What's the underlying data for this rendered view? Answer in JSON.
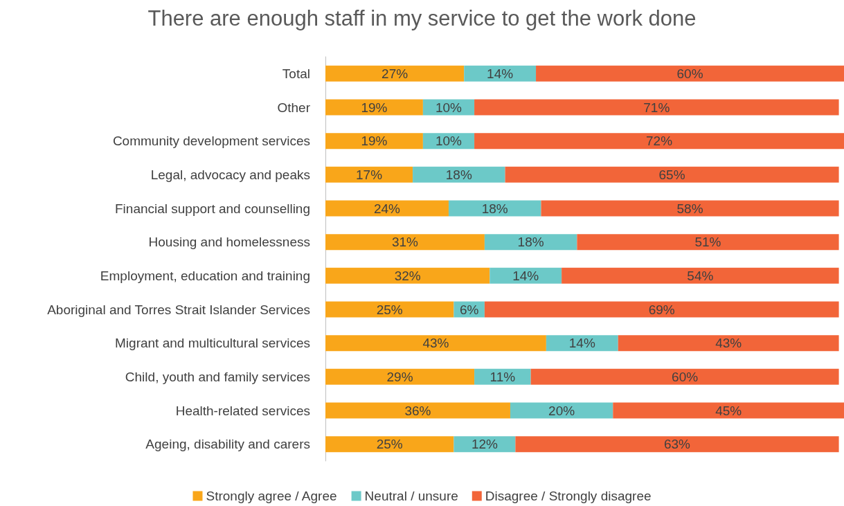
{
  "chart_data": {
    "type": "bar",
    "orientation": "horizontal",
    "stacked": true,
    "legend": "bottom",
    "title": "There are enough staff in my service to get the work done",
    "categories": [
      "Total",
      "Other",
      "Community development services",
      "Legal, advocacy and peaks",
      "Financial support and counselling",
      "Housing and homelessness",
      "Employment, education and training",
      "Aboriginal and Torres Strait Islander Services",
      "Migrant and multicultural services",
      "Child, youth and family services",
      "Health-related services",
      "Ageing, disability and carers"
    ],
    "series": [
      {
        "name": "Strongly agree / Agree",
        "color": "#f9a61a",
        "values": [
          27,
          19,
          19,
          17,
          24,
          31,
          32,
          25,
          43,
          29,
          36,
          25
        ],
        "value_labels": [
          "27%",
          "19%",
          "19%",
          "17%",
          "24%",
          "31%",
          "32%",
          "25%",
          "43%",
          "29%",
          "36%",
          "25%"
        ]
      },
      {
        "name": "Neutral / unsure",
        "color": "#6cc9c8",
        "values": [
          14,
          10,
          10,
          18,
          18,
          18,
          14,
          6,
          14,
          11,
          20,
          12
        ],
        "value_labels": [
          "14%",
          "10%",
          "10%",
          "18%",
          "18%",
          "18%",
          "14%",
          "6%",
          "14%",
          "11%",
          "20%",
          "12%"
        ]
      },
      {
        "name": "Disagree / Strongly disagree",
        "color": "#f26539",
        "values": [
          60,
          71,
          72,
          65,
          58,
          51,
          54,
          69,
          43,
          60,
          45,
          63
        ],
        "value_labels": [
          "60%",
          "71%",
          "72%",
          "65%",
          "58%",
          "51%",
          "54%",
          "69%",
          "43%",
          "60%",
          "45%",
          "63%"
        ]
      }
    ]
  }
}
